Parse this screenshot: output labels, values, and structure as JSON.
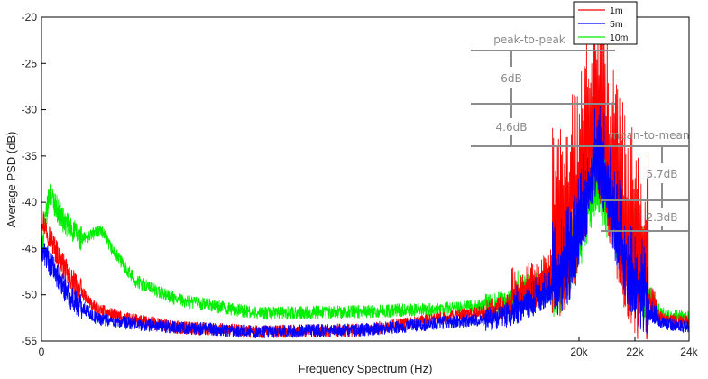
{
  "chart_data": {
    "type": "line",
    "xlabel": "Frequency Spectrum (Hz)",
    "ylabel": "Average PSD (dB)",
    "ylim": [
      -55,
      -20
    ],
    "yticks": [
      -55,
      -50,
      -45,
      -40,
      -35,
      -30,
      -25,
      -20
    ],
    "x_tick_labels": [
      "0",
      "20k",
      "22k",
      "24k"
    ],
    "x_tick_values": [
      0,
      20000,
      22000,
      24000
    ],
    "xlim": [
      0,
      24000
    ],
    "grid": false,
    "legend_position": "top-right",
    "series": [
      {
        "name": "1m",
        "color": "#ff0000",
        "x": [
          0,
          500,
          1000,
          2000,
          3000,
          5000,
          8000,
          12000,
          15000,
          17000,
          18500,
          19500,
          20000,
          20300,
          20600,
          20900,
          21200,
          21600,
          22000,
          22500,
          23000,
          24000
        ],
        "y": [
          -41.5,
          -45,
          -48,
          -51.5,
          -52.5,
          -53.5,
          -54,
          -53.8,
          -52.5,
          -51.5,
          -50,
          -47,
          -42,
          -37,
          -33,
          -36,
          -41,
          -46,
          -49,
          -51,
          -52.5,
          -53
        ]
      },
      {
        "name": "5m",
        "color": "#0000ff",
        "x": [
          0,
          500,
          1000,
          2000,
          3000,
          5000,
          8000,
          12000,
          15000,
          17000,
          18500,
          19500,
          20000,
          20300,
          20600,
          20900,
          21200,
          21600,
          22000,
          22500,
          23000,
          24000
        ],
        "y": [
          -45,
          -47.5,
          -50,
          -52.5,
          -53,
          -53.5,
          -54,
          -53.8,
          -53,
          -52.5,
          -51,
          -48.5,
          -45,
          -40,
          -36,
          -38,
          -42,
          -47,
          -50,
          -52,
          -53,
          -53.5
        ]
      },
      {
        "name": "10m",
        "color": "#00ee00",
        "x": [
          0,
          300,
          800,
          1500,
          2200,
          2600,
          3500,
          5000,
          8000,
          12000,
          15000,
          17000,
          18500,
          19500,
          20000,
          20300,
          20600,
          20900,
          21200,
          21600,
          22000,
          22500,
          23000,
          24000
        ],
        "y": [
          -45,
          -39,
          -42,
          -44,
          -43,
          -45,
          -48.5,
          -50.5,
          -52,
          -51.8,
          -51.5,
          -51,
          -50,
          -48.5,
          -45,
          -41,
          -38,
          -40,
          -42,
          -46,
          -48,
          -50.5,
          -52,
          -52.5
        ]
      }
    ],
    "annotations": [
      {
        "text": "peak-to-peak"
      },
      {
        "text": "6dB"
      },
      {
        "text": "4.6dB"
      },
      {
        "text": "mean-to-mean"
      },
      {
        "text": "5.7dB"
      },
      {
        "text": "2.3dB"
      }
    ]
  }
}
